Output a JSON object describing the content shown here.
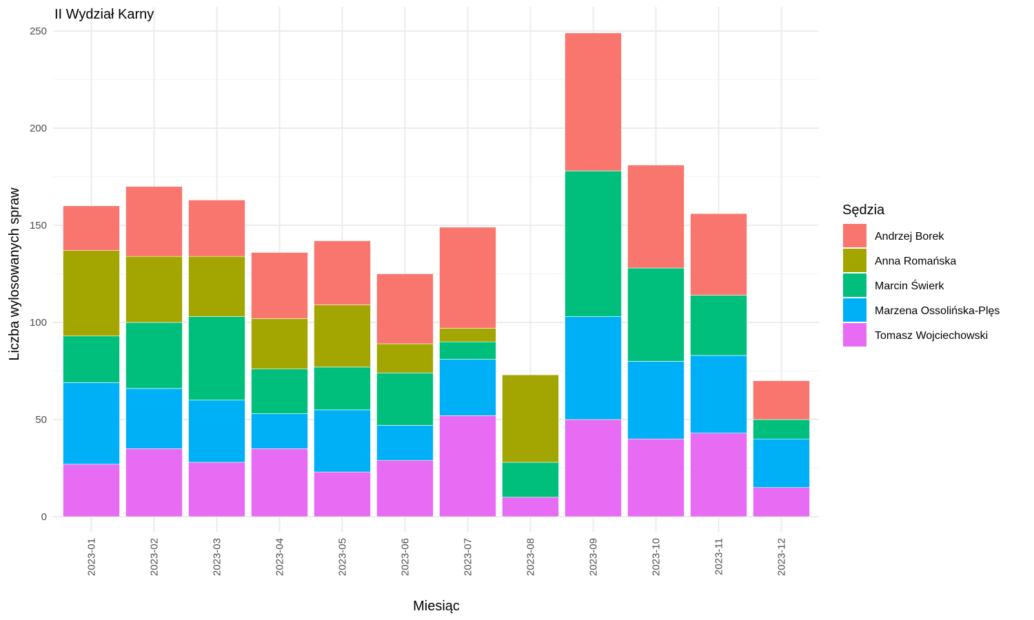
{
  "chart_data": {
    "type": "bar",
    "stacked": true,
    "title": "II Wydział Karny",
    "xlabel": "Miesiąc",
    "ylabel": "Liczba wylosowanych spraw",
    "ylim": [
      0,
      250
    ],
    "yticks": [
      0,
      50,
      100,
      150,
      200,
      250
    ],
    "grid": true,
    "legend_title": "Sędzia",
    "legend_position": "right",
    "categories": [
      "2023-01",
      "2023-02",
      "2023-03",
      "2023-04",
      "2023-05",
      "2023-06",
      "2023-07",
      "2023-08",
      "2023-09",
      "2023-10",
      "2023-11",
      "2023-12"
    ],
    "series": [
      {
        "name": "Andrzej Borek",
        "color": "#F8766D",
        "values": [
          23,
          36,
          29,
          34,
          33,
          36,
          52,
          0,
          71,
          53,
          42,
          20
        ]
      },
      {
        "name": "Anna Romańska",
        "color": "#A3A500",
        "values": [
          44,
          34,
          31,
          26,
          32,
          15,
          7,
          45,
          0,
          0,
          0,
          0
        ]
      },
      {
        "name": "Marcin Świerk",
        "color": "#00BF7D",
        "values": [
          24,
          34,
          43,
          23,
          22,
          27,
          9,
          18,
          75,
          48,
          31,
          10
        ]
      },
      {
        "name": "Marzena Ossolińska-Plęs",
        "color": "#00B0F6",
        "values": [
          42,
          31,
          32,
          18,
          32,
          18,
          29,
          0,
          53,
          40,
          40,
          25
        ]
      },
      {
        "name": "Tomasz Wojciechowski",
        "color": "#E76BF3",
        "values": [
          27,
          35,
          28,
          35,
          23,
          29,
          52,
          10,
          50,
          40,
          43,
          15
        ]
      }
    ]
  }
}
